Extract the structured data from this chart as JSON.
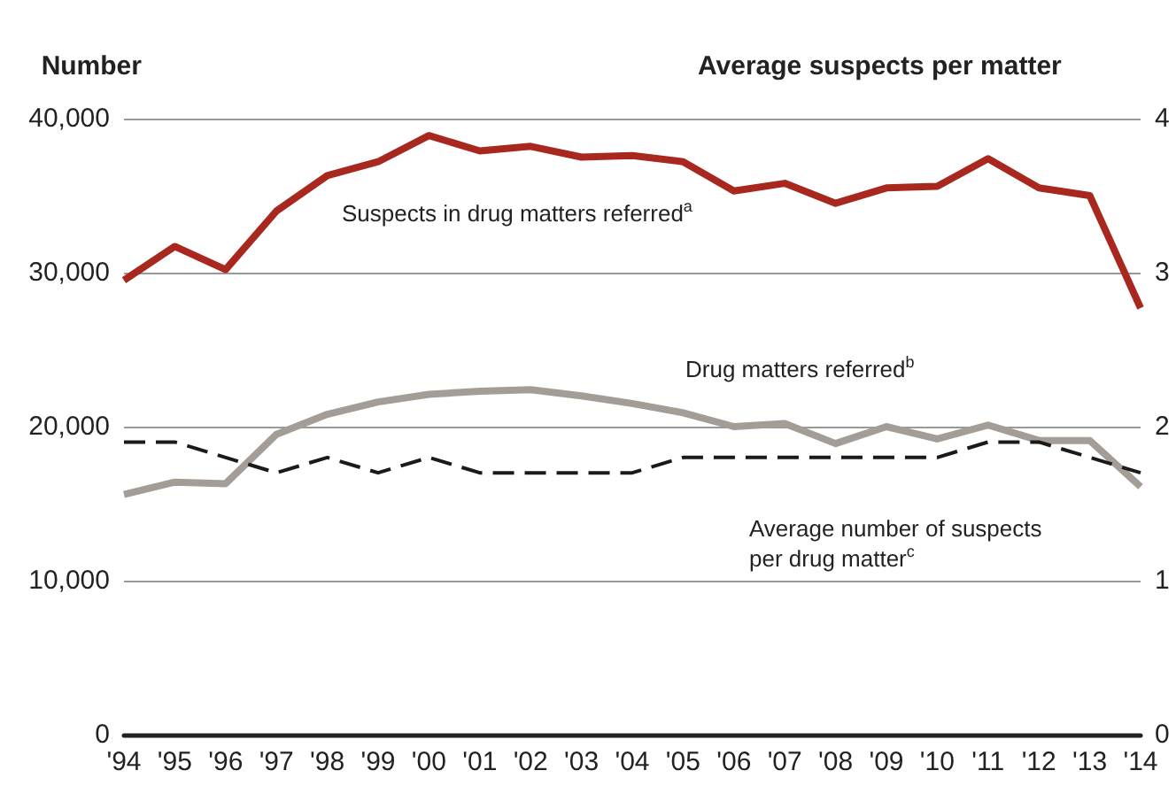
{
  "chart_data": {
    "type": "line",
    "xlabel": null,
    "ylabel": "Number",
    "y2label": "Average suspects per matter",
    "categories": [
      "'94",
      "'95",
      "'96",
      "'97",
      "'98",
      "'99",
      "'00",
      "'01",
      "'02",
      "'03",
      "'04",
      "'05",
      "'06",
      "'07",
      "'08",
      "'09",
      "'10",
      "'11",
      "'12",
      "'13",
      "'14"
    ],
    "series": [
      {
        "color": "#a8271e",
        "line_style": "solid",
        "values": [
          29500,
          31700,
          30200,
          34000,
          36300,
          37200,
          38900,
          37900,
          38200,
          37500,
          37600,
          37200,
          35300,
          35800,
          34500,
          35500,
          35600,
          37400,
          35500,
          35000,
          27700
        ]
      },
      {
        "color": "#a39d96",
        "line_style": "solid",
        "values": [
          15600,
          16400,
          16300,
          19500,
          20800,
          21600,
          22100,
          22300,
          22400,
          22000,
          21500,
          20900,
          20000,
          20200,
          18900,
          20000,
          19200,
          20100,
          19100,
          19100,
          16100
        ]
      },
      {
        "color": "#1a1a1a",
        "line_style": "dashed",
        "axis": "y2",
        "values": [
          1.9,
          1.9,
          1.8,
          1.7,
          1.8,
          1.7,
          1.8,
          1.7,
          1.7,
          1.7,
          1.7,
          1.8,
          1.8,
          1.8,
          1.8,
          1.8,
          1.8,
          1.9,
          1.9,
          1.8,
          1.7
        ]
      }
    ],
    "ylim": [
      0,
      40000
    ],
    "yticks": [
      {
        "value": 0,
        "label": "0"
      },
      {
        "value": 10000,
        "label": "10,000"
      },
      {
        "value": 20000,
        "label": "20,000"
      },
      {
        "value": 30000,
        "label": "30,000"
      },
      {
        "value": 40000,
        "label": "40,000"
      }
    ],
    "y2lim": [
      0,
      4
    ],
    "y2ticks": [
      0,
      1,
      2,
      3,
      4
    ],
    "grid": "y",
    "marker": "none",
    "annotations": [
      "Suspects in drug matters referred$^{a}$",
      "Drug matters referred$^{b}$",
      "Average number of suspects per drug matter$^{c}$"
    ]
  }
}
